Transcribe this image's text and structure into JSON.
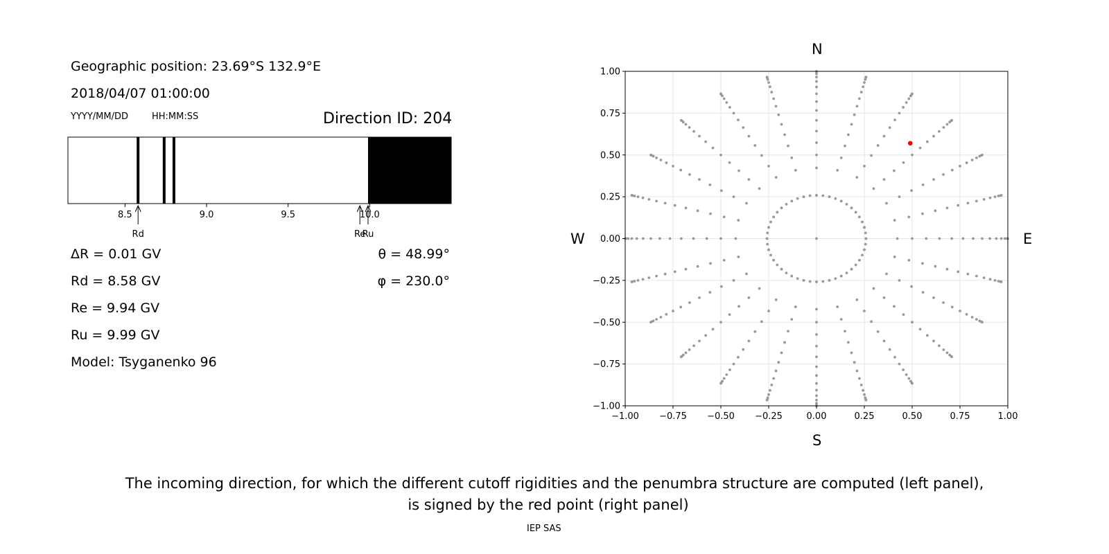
{
  "info": {
    "geo_position": "Geographic position: 23.69°S 132.9°E",
    "datetime": "2018/04/07 01:00:00",
    "date_format": "YYYY/MM/DD",
    "time_format": "HH:MM:SS",
    "direction_id": "Direction ID: 204"
  },
  "params": {
    "delta_r": "ΔR = 0.01 GV",
    "rd": "Rd = 8.58 GV",
    "re": "Re = 9.94 GV",
    "ru": "Ru = 9.99 GV",
    "model": "Model: Tsyganenko 96",
    "theta": "θ = 48.99°",
    "phi": "φ = 230.0°"
  },
  "compass": {
    "n": "N",
    "s": "S",
    "w": "W",
    "e": "E"
  },
  "caption": {
    "line1": "The incoming direction, for which the different cutoff rigidities and the penumbra structure are computed (left panel),",
    "line2": "is signed by the red point (right panel)",
    "credit": "IEP SAS"
  },
  "chart_data": [
    {
      "type": "penumbra-bar",
      "xlim": [
        8.15,
        10.5
      ],
      "ticks": [
        8.5,
        9.0,
        9.5,
        10.0
      ],
      "tick_labels": [
        "8.5",
        "9.0",
        "9.5",
        "10.0"
      ],
      "forbidden_lines": [
        8.58,
        8.74,
        8.8
      ],
      "allowed_from": 9.99,
      "markers": [
        {
          "label": "Rd",
          "value": 8.58
        },
        {
          "label": "Re",
          "value": 9.94
        },
        {
          "label": "Ru",
          "value": 9.99
        }
      ],
      "colors": {
        "forbidden": "#000000",
        "allowed": "#ffffff"
      }
    },
    {
      "type": "scatter",
      "xlim": [
        -1.0,
        1.0
      ],
      "ylim": [
        -1.0,
        1.0
      ],
      "ticks": [
        -1.0,
        -0.75,
        -0.5,
        -0.25,
        0.0,
        0.25,
        0.5,
        0.75,
        1.0
      ],
      "tick_labels": [
        "−1.00",
        "−0.75",
        "−0.50",
        "−0.25",
        "0.00",
        "0.25",
        "0.50",
        "0.75",
        "1.00"
      ],
      "grid": true,
      "grid_rays": 24,
      "grid_theta_deg": [
        0,
        15,
        25,
        30,
        35,
        40,
        45,
        50,
        55,
        60,
        65,
        70,
        75,
        80,
        85,
        90
      ],
      "grid_color": "#999999",
      "highlight": {
        "x": 0.49,
        "y": 0.57,
        "color": "#ff0000"
      }
    }
  ]
}
